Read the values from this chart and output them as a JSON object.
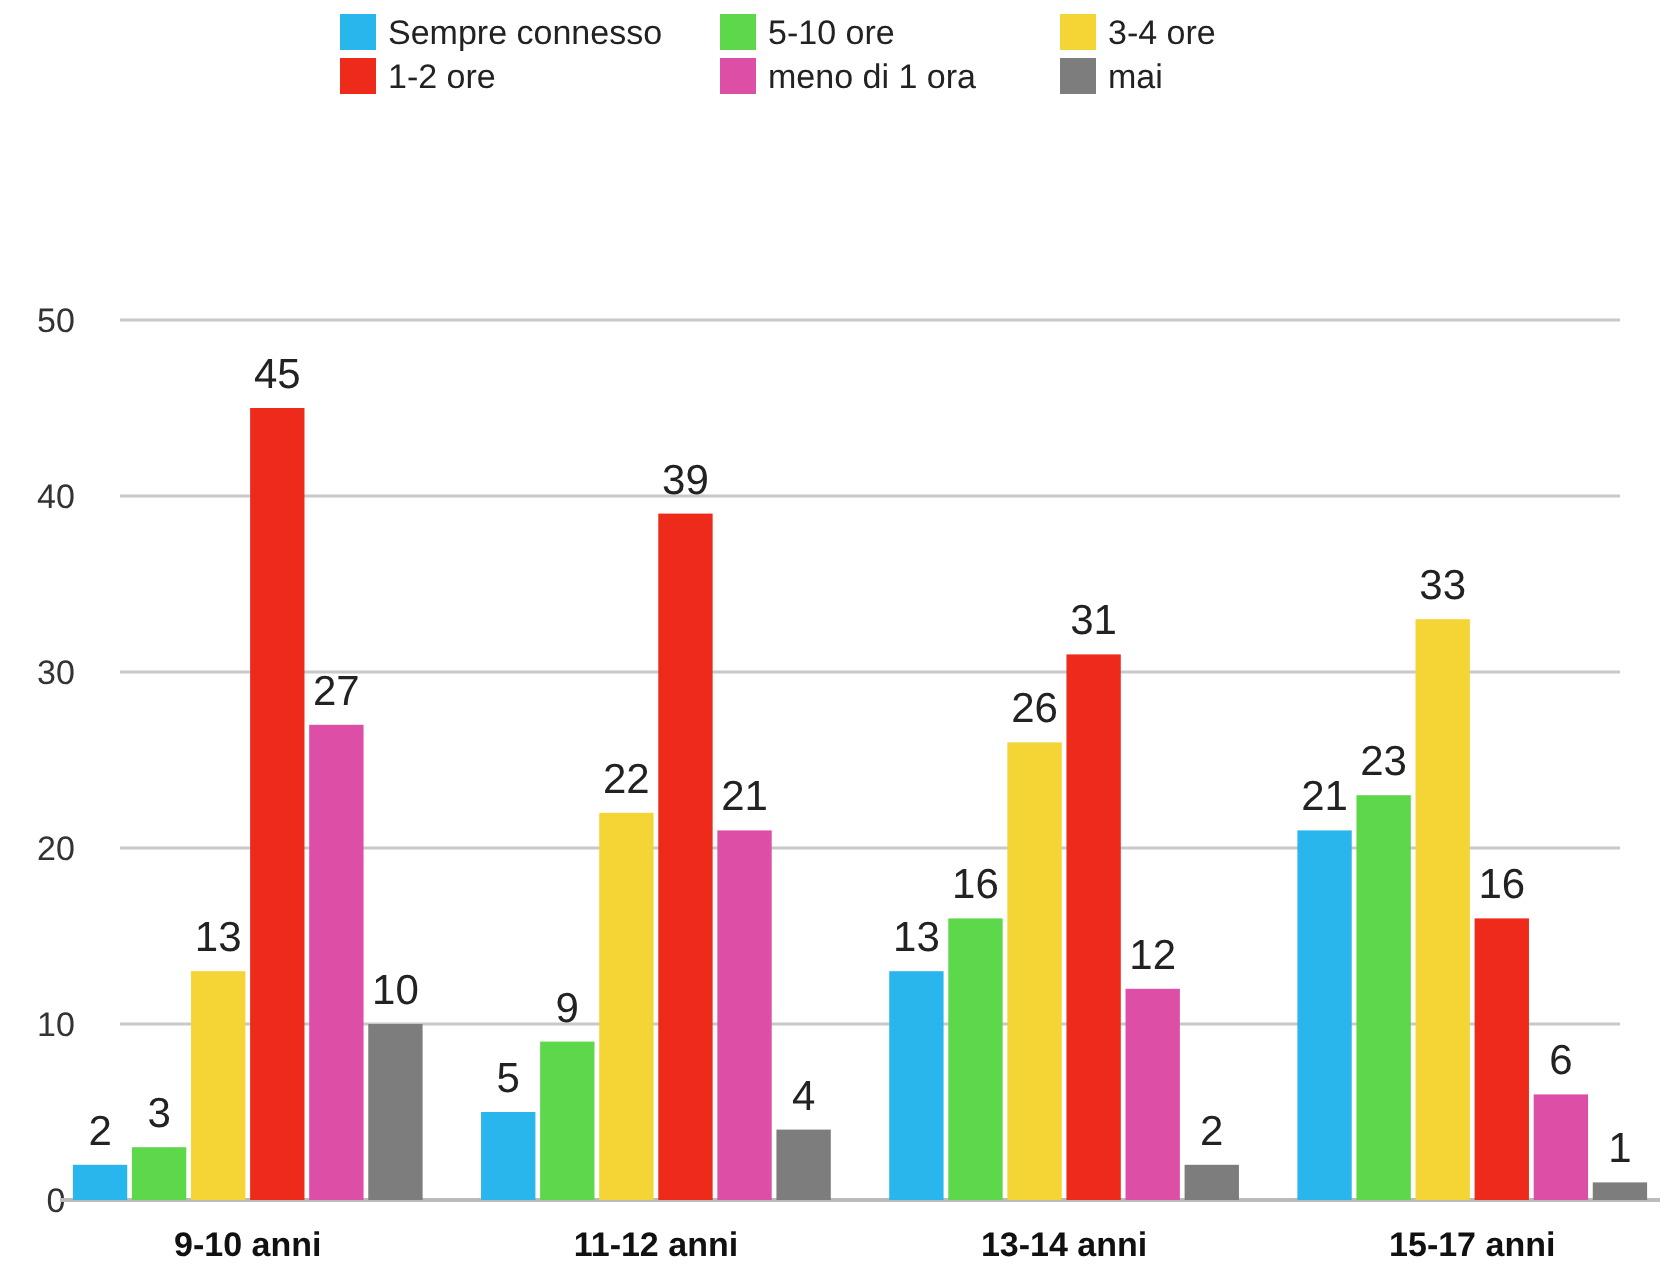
{
  "chart_data": {
    "type": "bar",
    "categories": [
      "9-10 anni",
      "11-12 anni",
      "13-14 anni",
      "15-17 anni"
    ],
    "series": [
      {
        "name": "Sempre connesso",
        "color": "#29b6ec",
        "values": [
          2,
          5,
          13,
          21
        ]
      },
      {
        "name": "5-10 ore",
        "color": "#5dd84a",
        "values": [
          3,
          9,
          16,
          23
        ]
      },
      {
        "name": "3-4 ore",
        "color": "#f5d535",
        "values": [
          13,
          22,
          26,
          33
        ]
      },
      {
        "name": "1-2 ore",
        "color": "#ee2a1b",
        "values": [
          45,
          39,
          31,
          16
        ]
      },
      {
        "name": "meno di 1 ora",
        "color": "#dd4fa6",
        "values": [
          27,
          21,
          12,
          6
        ]
      },
      {
        "name": "mai",
        "color": "#7d7d7d",
        "values": [
          10,
          4,
          2,
          1
        ]
      }
    ],
    "ylim": [
      0,
      50
    ],
    "yticks": [
      0,
      10,
      20,
      30,
      40,
      50
    ],
    "grid": "y",
    "legend": "top",
    "data_labels": true
  }
}
